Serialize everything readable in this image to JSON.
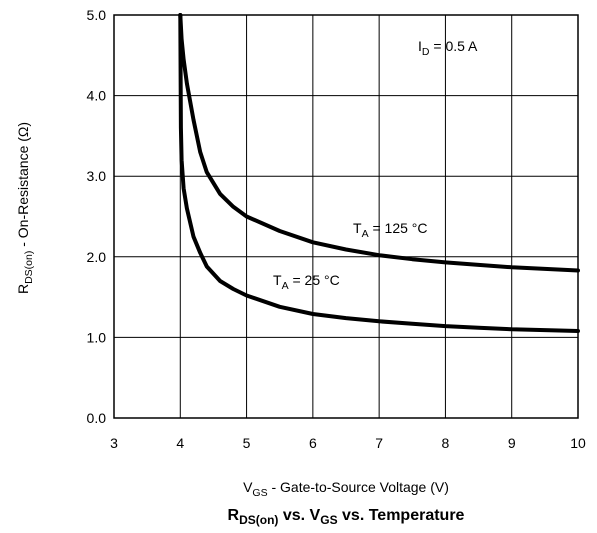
{
  "chart_data": {
    "type": "line",
    "title": {
      "r": "R",
      "r_sub": "DS(on)",
      "mid": " vs. V",
      "v_sub": "GS",
      "end": " vs. Temperature"
    },
    "xlabel": {
      "v": "V",
      "v_sub": "GS",
      "rest": " - Gate-to-Source Voltage (V)"
    },
    "ylabel": {
      "r": "R",
      "r_sub": "DS(on)",
      "rest": " - On-Resistance (Ω)"
    },
    "xlim": [
      3,
      10
    ],
    "ylim": [
      0,
      5
    ],
    "x_ticks": [
      "3",
      "4",
      "5",
      "6",
      "7",
      "8",
      "9",
      "10"
    ],
    "y_ticks": [
      "0.0",
      "1.0",
      "2.0",
      "3.0",
      "4.0",
      "5.0"
    ],
    "grid": true,
    "annotations": [
      {
        "id": "id",
        "main": "I",
        "sub": "D",
        "rest": " = 0.5 A"
      },
      {
        "id": "t125",
        "main": "T",
        "sub": "A",
        "rest": " = 125 °C"
      },
      {
        "id": "t25",
        "main": "T",
        "sub": "A",
        "rest": " = 25 °C"
      }
    ],
    "series": [
      {
        "label_id": "t125",
        "x": [
          4.0,
          4.02,
          4.05,
          4.1,
          4.2,
          4.3,
          4.4,
          4.6,
          4.8,
          5.0,
          5.5,
          6.0,
          6.5,
          7.0,
          7.5,
          8.0,
          8.5,
          9.0,
          9.5,
          10.0
        ],
        "y": [
          5.0,
          4.7,
          4.45,
          4.15,
          3.7,
          3.3,
          3.05,
          2.78,
          2.62,
          2.5,
          2.32,
          2.18,
          2.09,
          2.02,
          1.97,
          1.93,
          1.9,
          1.87,
          1.85,
          1.83
        ]
      },
      {
        "label_id": "t25",
        "x": [
          4.0,
          4.01,
          4.02,
          4.05,
          4.1,
          4.2,
          4.3,
          4.4,
          4.6,
          4.8,
          5.0,
          5.5,
          6.0,
          6.5,
          7.0,
          7.5,
          8.0,
          8.5,
          9.0,
          9.5,
          10.0
        ],
        "y": [
          5.0,
          3.6,
          3.2,
          2.85,
          2.6,
          2.25,
          2.05,
          1.88,
          1.7,
          1.6,
          1.52,
          1.38,
          1.29,
          1.24,
          1.2,
          1.17,
          1.14,
          1.12,
          1.1,
          1.09,
          1.08
        ]
      }
    ]
  }
}
